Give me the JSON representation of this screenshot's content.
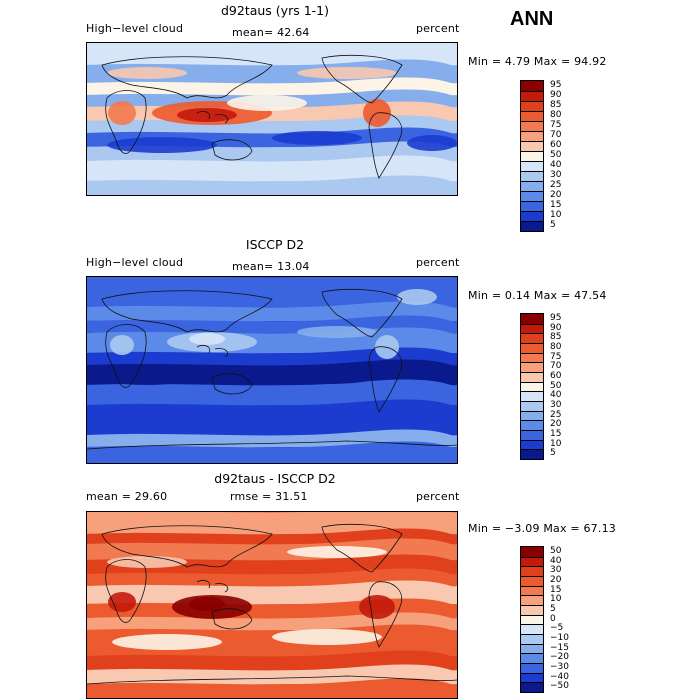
{
  "season": "ANN",
  "panels": [
    {
      "title": "d92taus (yrs 1-1)",
      "left_label": "High−level cloud",
      "mean_text": "mean=  42.64",
      "rmse_text": "",
      "units": "percent",
      "minmax": "Min =   4.79  Max =  94.92",
      "colorbar_labels": [
        "95",
        "90",
        "85",
        "80",
        "75",
        "70",
        "60",
        "50",
        "40",
        "30",
        "25",
        "20",
        "15",
        "10",
        "5"
      ],
      "colorbar_colors": [
        "#8a0000",
        "#c41a0c",
        "#e0401c",
        "#ec5a30",
        "#f27a50",
        "#f6a07c",
        "#f8c8b0",
        "#fdf4e8",
        "#d6e6f8",
        "#aac8f0",
        "#86aeec",
        "#5c8ae8",
        "#3a64e0",
        "#1c3cd0",
        "#0a1a8c"
      ],
      "field": "high"
    },
    {
      "title": "ISCCP D2",
      "left_label": "High−level cloud",
      "mean_text": "mean=  13.04",
      "rmse_text": "",
      "units": "percent",
      "minmax": "Min =   0.14  Max =  47.54",
      "colorbar_labels": [
        "95",
        "90",
        "85",
        "80",
        "75",
        "70",
        "60",
        "50",
        "40",
        "30",
        "25",
        "20",
        "15",
        "10",
        "5"
      ],
      "colorbar_colors": [
        "#8a0000",
        "#c41a0c",
        "#e0401c",
        "#ec5a30",
        "#f27a50",
        "#f6a07c",
        "#f8c8b0",
        "#fdf4e8",
        "#d6e6f8",
        "#aac8f0",
        "#86aeec",
        "#5c8ae8",
        "#3a64e0",
        "#1c3cd0",
        "#0a1a8c"
      ],
      "field": "low"
    },
    {
      "title": "d92taus - ISCCP D2",
      "left_label": "mean =  29.60",
      "mean_text": "",
      "rmse_text": "rmse =  31.51",
      "units": "percent",
      "minmax": "Min =  −3.09  Max =  67.13",
      "colorbar_labels": [
        "50",
        "40",
        "30",
        "20",
        "15",
        "10",
        "5",
        "0",
        "−5",
        "−10",
        "−15",
        "−20",
        "−30",
        "−40",
        "−50"
      ],
      "colorbar_colors": [
        "#8a0000",
        "#c41a0c",
        "#e0401c",
        "#ec5a30",
        "#f27a50",
        "#f6a07c",
        "#f8c8b0",
        "#fdf4e8",
        "#d6e6f8",
        "#aac8f0",
        "#86aeec",
        "#5c8ae8",
        "#3a64e0",
        "#1c3cd0",
        "#0a1a8c"
      ],
      "field": "diff"
    }
  ]
}
